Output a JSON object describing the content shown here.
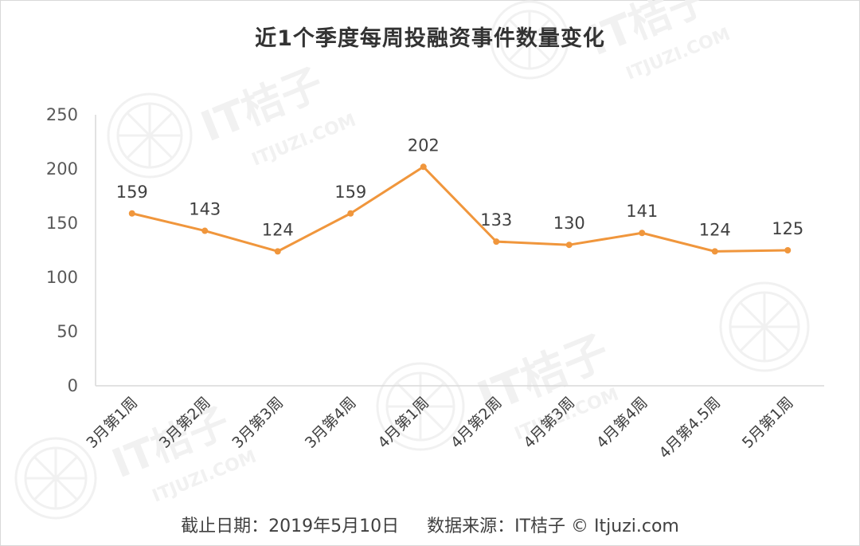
{
  "title": "近1个季度每周投融资事件数量变化",
  "footer": {
    "date_label": "截止日期：2019年5月10日",
    "source_label": "数据来源：IT桔子 © Itjuzi.com"
  },
  "watermark": {
    "brand": "IT桔子",
    "site": "ITJUZI.COM"
  },
  "colors": {
    "line": "#f0963c",
    "axis": "#d9d9d9"
  },
  "chart_data": {
    "type": "line",
    "title": "近1个季度每周投融资事件数量变化",
    "categories": [
      "3月第1周",
      "3月第2周",
      "3月第3周",
      "3月第4周",
      "4月第1周",
      "4月第2周",
      "4月第3周",
      "4月第4周",
      "4月第4.5周",
      "5月第1周"
    ],
    "values": [
      159,
      143,
      124,
      159,
      202,
      133,
      130,
      141,
      124,
      125
    ],
    "ylim": [
      0,
      250
    ],
    "yticks": [
      0,
      50,
      100,
      150,
      200,
      250
    ],
    "grid": false,
    "legend": "none",
    "xlabel": "",
    "ylabel": ""
  }
}
